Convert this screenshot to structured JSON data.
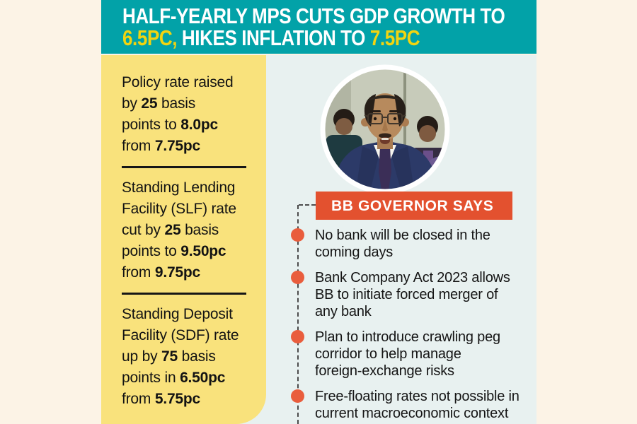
{
  "colors": {
    "background": "#fcf3e6",
    "header_teal": "#02a2a8",
    "header_highlight_yellow": "#f2d410",
    "rates_panel_yellow": "#f9e27c",
    "right_panel": "#e8f1f0",
    "banner_orange": "#e3512f",
    "bullet_dot": "#e95d3d",
    "body_text": "#151515"
  },
  "header": {
    "lines": [
      [
        {
          "text": "HALF-YEARLY MPS CUTS GDP GROWTH TO",
          "highlight": false
        }
      ],
      [
        {
          "text": "6.5PC,",
          "highlight": true
        },
        {
          "text": " HIKES INFLATION TO ",
          "highlight": false
        },
        {
          "text": "7.5PC",
          "highlight": true
        }
      ]
    ]
  },
  "rate_cards": [
    {
      "text": "Policy rate raised\nby **25** basis\npoints to **8.0pc**\nfrom **7.75pc**"
    },
    {
      "text": "Standing Lending\nFacility (SLF) rate\ncut by **25** basis\npoints to **9.50pc**\nfrom **9.75pc**"
    },
    {
      "text": "Standing Deposit\nFacility (SDF) rate\nup by **75** basis\npoints in **6.50pc**\nfrom **5.75pc**"
    }
  ],
  "governor_says": {
    "banner_label": "BB GOVERNOR SAYS",
    "photo_subject": "BB Governor speaking at event",
    "bullets": [
      "No bank will be closed in the\ncoming days",
      "Bank Company Act 2023 allows\nBB to initiate forced merger of\nany bank",
      "Plan to introduce crawling peg\ncorridor to help manage\nforeign-exchange risks",
      "Free-floating rates not possible in\ncurrent macroeconomic context"
    ]
  }
}
